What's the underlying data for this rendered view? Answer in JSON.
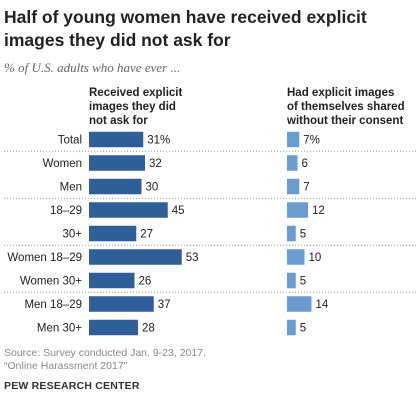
{
  "title": "Half of young women have received explicit images they did not ask for",
  "subtitle": "% of U.S. adults who have ever ...",
  "chart_data": {
    "type": "bar",
    "categories": [
      "Total",
      "Women",
      "Men",
      "18-29",
      "30+",
      "Women 18-29",
      "Women 30+",
      "Men 18-29",
      "Men 30+"
    ],
    "series": [
      {
        "name": "Received explicit images they did not ask for",
        "values": [
          31,
          32,
          30,
          45,
          27,
          53,
          26,
          37,
          28
        ],
        "value_labels": [
          "31%",
          "32",
          "30",
          "45",
          "27",
          "53",
          "26",
          "37",
          "28"
        ],
        "color": "#2e5f98"
      },
      {
        "name": "Had explicit images of themselves shared without their consent",
        "values": [
          7,
          6,
          7,
          12,
          5,
          10,
          5,
          14,
          5
        ],
        "value_labels": [
          "7%",
          "6",
          "7",
          "12",
          "5",
          "10",
          "5",
          "14",
          "5"
        ],
        "color": "#6a9bd1"
      }
    ],
    "group_separators_after": [
      0,
      2,
      4,
      6
    ],
    "legend": "column headers"
  },
  "col1_header_lines": [
    "Received explicit",
    "images they did",
    "not ask for"
  ],
  "col2_header_lines": [
    "Had explicit images",
    "of themselves shared",
    "without their consent"
  ],
  "row_labels": [
    "Total",
    "Women",
    "Men",
    "18–29",
    "30+",
    "Women 18–29",
    "Women 30+",
    "Men 18–29",
    "Men 30+"
  ],
  "source_lines": [
    "Source: Survey conducted Jan. 9-23, 2017.",
    "“Online Harassment 2017”"
  ],
  "footer": "PEW RESEARCH CENTER",
  "colors": {
    "separator": "#999999"
  }
}
